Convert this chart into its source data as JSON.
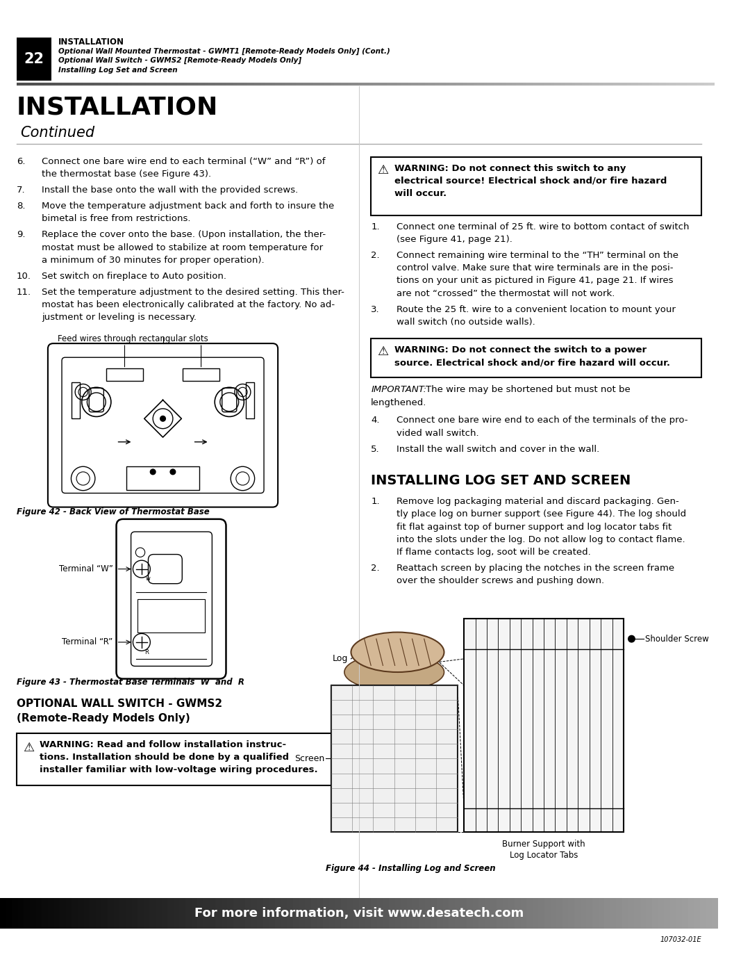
{
  "page_width": 10.8,
  "page_height": 13.97,
  "bg_color": "#ffffff",
  "header": {
    "box_color": "#000000",
    "box_text": "22",
    "title_bold": "INSTALLATION",
    "line1": "Optional Wall Mounted Thermostat - GWMT1 [Remote-Ready Models Only] (Cont.)",
    "line2": "Optional Wall Switch - GWMS2 [Remote-Ready Models Only]",
    "line3": "Installing Log Set and Screen"
  },
  "main_title": "INSTALLATION",
  "subtitle": "Continued",
  "fig42_caption": "Figure 42 - Back View of Thermostat Base",
  "fig43_caption": "Figure 43 - Thermostat Base Terminals  W  and  R",
  "opt_wall_title1": "OPTIONAL WALL SWITCH - GWMS2",
  "opt_wall_title2": "(Remote-Ready Models Only)",
  "install_log_title": "INSTALLING LOG SET AND SCREEN",
  "fig44_caption": "Figure 44 - Installing Log and Screen",
  "footer_text": "For more information, visit www.desatech.com",
  "footer_doc": "107032-01E"
}
